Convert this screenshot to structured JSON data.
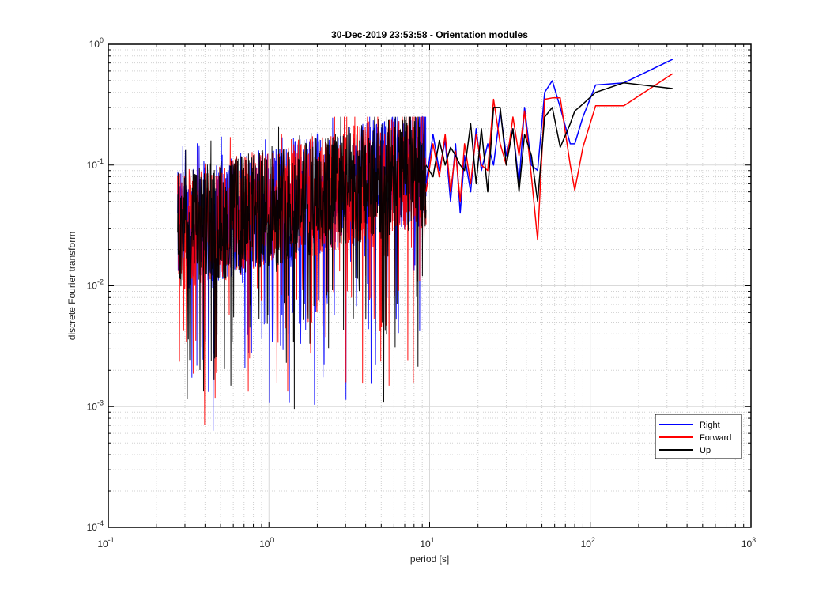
{
  "chart_data": {
    "type": "line",
    "title": "30-Dec-2019 23:53:58 - Orientation modules",
    "xlabel": "period [s]",
    "ylabel": "discrete Fourier transform",
    "xscale": "log",
    "yscale": "log",
    "xlim": [
      0.1,
      1000
    ],
    "ylim": [
      0.0001,
      1
    ],
    "grid": true,
    "minor_grid": true,
    "legend_position": "bottom-right",
    "x_ticks": [
      {
        "base": "10",
        "exp": "-1"
      },
      {
        "base": "10",
        "exp": "0"
      },
      {
        "base": "10",
        "exp": "1"
      },
      {
        "base": "10",
        "exp": "2"
      },
      {
        "base": "10",
        "exp": "3"
      }
    ],
    "y_ticks": [
      {
        "base": "10",
        "exp": "-4"
      },
      {
        "base": "10",
        "exp": "-3"
      },
      {
        "base": "10",
        "exp": "-2"
      },
      {
        "base": "10",
        "exp": "-1"
      },
      {
        "base": "10",
        "exp": "0"
      }
    ],
    "noise_band": {
      "x_range": [
        0.27,
        9.5
      ],
      "note": "dense overlapping spectra (all series)"
    },
    "series": [
      {
        "name": "Right",
        "color": "#0000ff",
        "x": [
          9.5,
          10.5,
          11.5,
          12.5,
          13.5,
          14.5,
          15.5,
          16.5,
          18,
          19.5,
          21,
          23,
          25,
          27.5,
          30,
          33,
          36,
          39,
          43,
          47,
          52,
          58,
          65,
          75,
          80,
          90,
          108,
          162,
          325
        ],
        "y": [
          0.07,
          0.18,
          0.09,
          0.16,
          0.05,
          0.15,
          0.04,
          0.12,
          0.06,
          0.2,
          0.09,
          0.15,
          0.1,
          0.28,
          0.12,
          0.2,
          0.07,
          0.3,
          0.1,
          0.09,
          0.4,
          0.5,
          0.3,
          0.15,
          0.15,
          0.25,
          0.46,
          0.48,
          0.75
        ]
      },
      {
        "name": "Forward",
        "color": "#ff0000",
        "x": [
          9.5,
          10.5,
          11.5,
          12.5,
          13.5,
          14.5,
          15.5,
          16.5,
          18,
          19.5,
          21,
          23,
          25,
          27.5,
          30,
          33,
          36,
          39,
          43,
          47,
          52,
          58,
          65,
          75,
          80,
          90,
          108,
          162,
          325
        ],
        "y": [
          0.06,
          0.15,
          0.08,
          0.18,
          0.06,
          0.13,
          0.05,
          0.15,
          0.07,
          0.18,
          0.1,
          0.09,
          0.35,
          0.15,
          0.1,
          0.25,
          0.12,
          0.28,
          0.08,
          0.024,
          0.35,
          0.36,
          0.36,
          0.1,
          0.062,
          0.14,
          0.31,
          0.31,
          0.57
        ]
      },
      {
        "name": "Up",
        "color": "#000000",
        "x": [
          9.5,
          10.5,
          11.5,
          12.5,
          13.5,
          14.5,
          15.5,
          16.5,
          18,
          19.5,
          21,
          23,
          25,
          27.5,
          30,
          33,
          36,
          39,
          43,
          47,
          52,
          58,
          65,
          75,
          80,
          90,
          108,
          162,
          325
        ],
        "y": [
          0.1,
          0.08,
          0.16,
          0.1,
          0.14,
          0.12,
          0.1,
          0.09,
          0.22,
          0.07,
          0.2,
          0.06,
          0.3,
          0.3,
          0.1,
          0.2,
          0.06,
          0.18,
          0.12,
          0.05,
          0.25,
          0.3,
          0.14,
          0.22,
          0.28,
          0.32,
          0.4,
          0.48,
          0.43
        ]
      }
    ]
  }
}
